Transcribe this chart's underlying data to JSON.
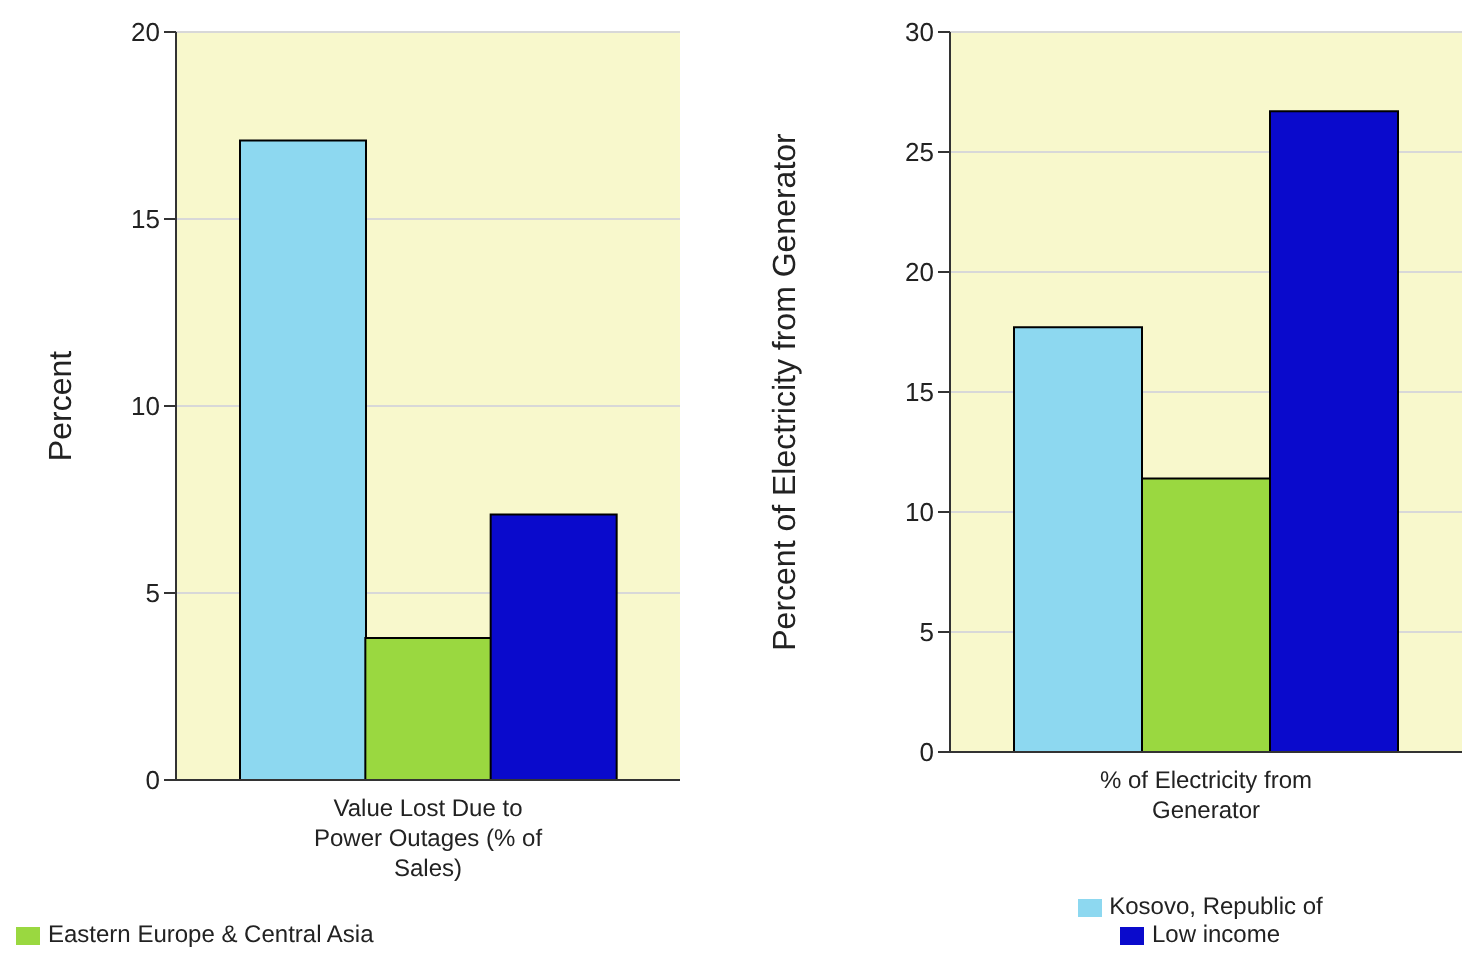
{
  "chart_data": [
    {
      "type": "bar",
      "categories": [
        null,
        null,
        null
      ],
      "xlabel": "Value Lost Due to Power Outages (% of Sales)",
      "ylabel": "Percent",
      "ylim": [
        0,
        20
      ],
      "yticks": [
        0,
        5,
        10,
        15,
        20
      ],
      "grid": "y",
      "legend": "bottom left",
      "stacked": true,
      "series": [
        {
          "color": "#8dd8f0",
          "values": [
            17.1,
            null,
            null
          ]
        },
        {
          "name": "Eastern Europe & Central Asia",
          "color": "#9ad840",
          "values": [
            null,
            3.8,
            null
          ]
        },
        {
          "color": "#0a0acc",
          "values": [
            null,
            null,
            7.1
          ]
        }
      ]
    },
    {
      "type": "bar",
      "categories": [
        null,
        null,
        null
      ],
      "xlabel": "% of Electricity from Generator",
      "ylabel": "Percent of Electricity from Generator",
      "ylim": [
        0,
        30
      ],
      "yticks": [
        0,
        5,
        10,
        15,
        20,
        25,
        30
      ],
      "grid": "y",
      "legend": "bottom",
      "stacked": true,
      "series": [
        {
          "name": "Kosovo, Republic of",
          "color": "#8dd8f0",
          "values": [
            17.7,
            null,
            null
          ]
        },
        {
          "color": "#9ad840",
          "values": [
            null,
            11.4,
            null
          ]
        },
        {
          "name": "Low income",
          "color": "#0a0acc",
          "values": [
            null,
            null,
            26.7
          ]
        }
      ]
    }
  ]
}
